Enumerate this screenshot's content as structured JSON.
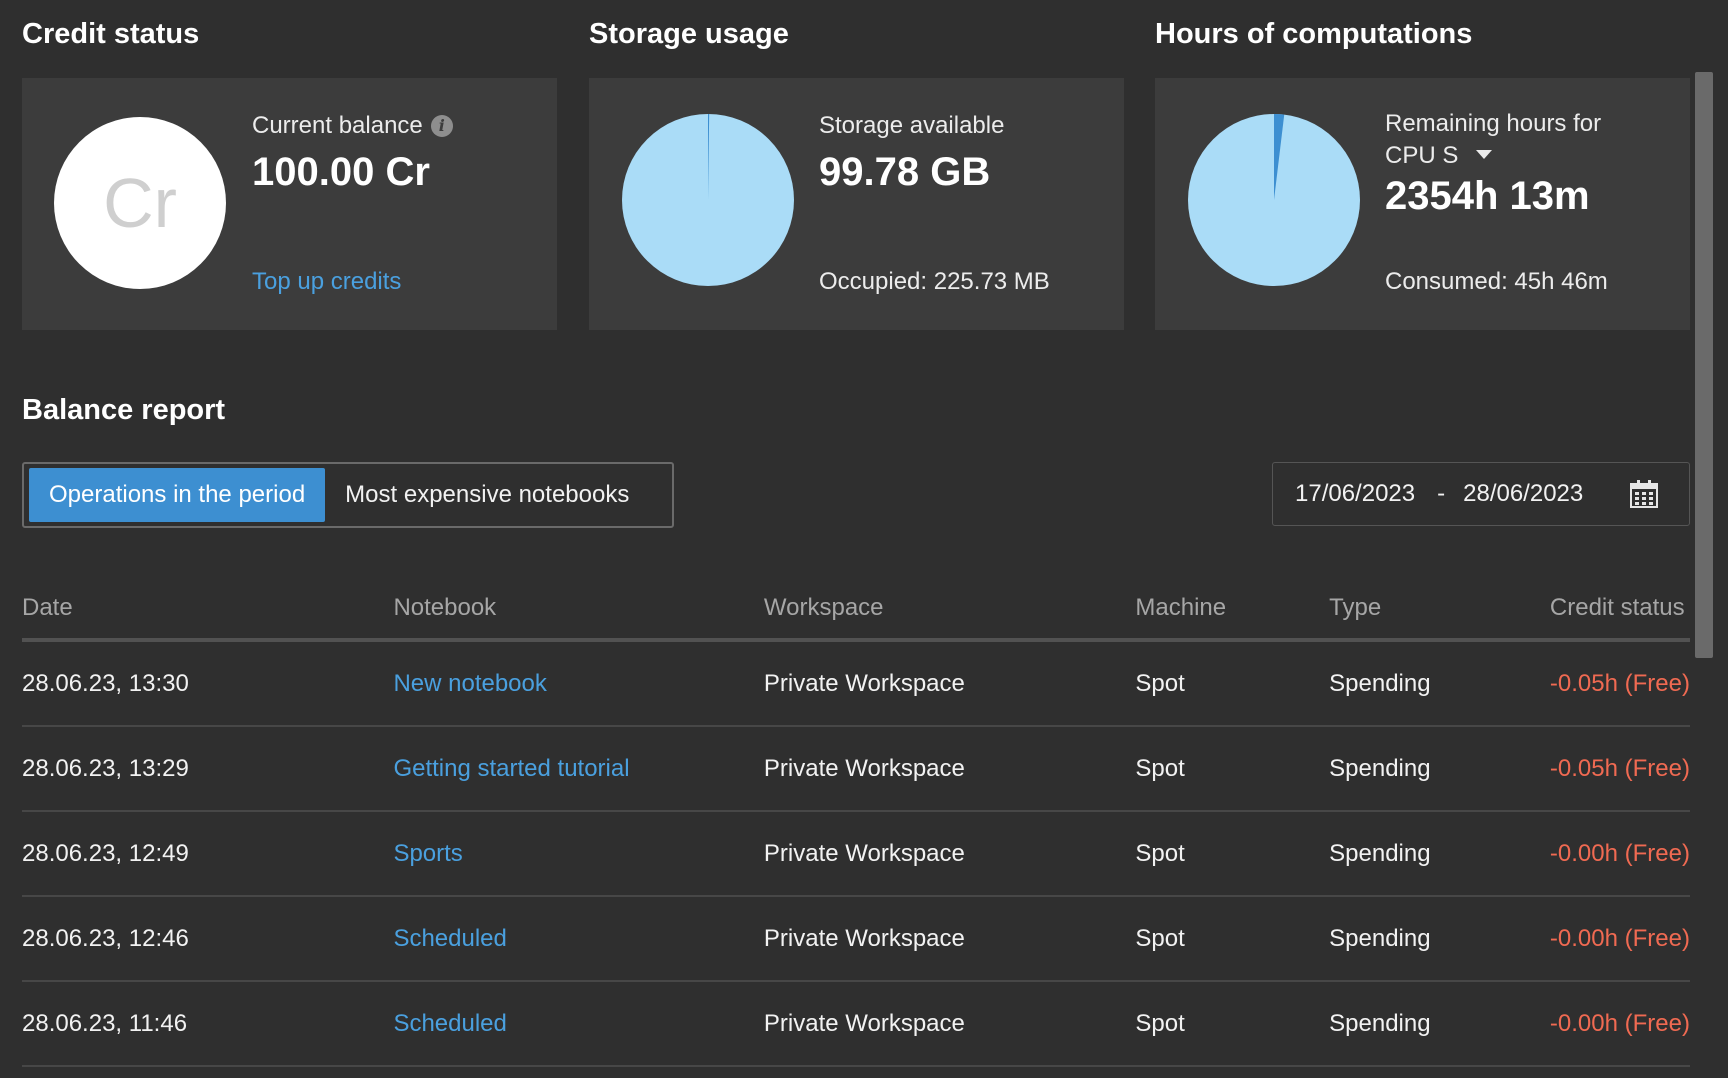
{
  "credit": {
    "title": "Credit status",
    "avatar_text": "Cr",
    "label": "Current balance",
    "info_icon": "i",
    "value": "100.00 Cr",
    "link": "Top up credits"
  },
  "storage": {
    "title": "Storage usage",
    "label": "Storage available",
    "value": "99.78 GB",
    "sub": "Occupied: 225.73 MB",
    "used_fraction": 0.0022
  },
  "hours": {
    "title": "Hours of computations",
    "label_line1": "Remaining hours for",
    "machine": "CPU S",
    "value": "2354h 13m",
    "sub": "Consumed: 45h 46m",
    "used_fraction": 0.019
  },
  "report": {
    "title": "Balance report",
    "tabs": [
      "Operations in the period",
      "Most expensive notebooks"
    ],
    "active_tab": 0,
    "date_from": "17/06/2023",
    "date_sep": "-",
    "date_to": "28/06/2023",
    "columns": [
      "Date",
      "Notebook",
      "Workspace",
      "Machine",
      "Type",
      "Credit status"
    ],
    "rows": [
      {
        "date": "28.06.23, 13:30",
        "notebook": "New notebook",
        "workspace": "Private Workspace",
        "machine": "Spot",
        "type": "Spending",
        "credit": "-0.05h (Free)"
      },
      {
        "date": "28.06.23, 13:29",
        "notebook": "Getting started tutorial",
        "workspace": "Private Workspace",
        "machine": "Spot",
        "type": "Spending",
        "credit": "-0.05h (Free)"
      },
      {
        "date": "28.06.23, 12:49",
        "notebook": "Sports",
        "workspace": "Private Workspace",
        "machine": "Spot",
        "type": "Spending",
        "credit": "-0.00h (Free)"
      },
      {
        "date": "28.06.23, 12:46",
        "notebook": "Scheduled",
        "workspace": "Private Workspace",
        "machine": "Spot",
        "type": "Spending",
        "credit": "-0.00h (Free)"
      },
      {
        "date": "28.06.23, 11:46",
        "notebook": "Scheduled",
        "workspace": "Private Workspace",
        "machine": "Spot",
        "type": "Spending",
        "credit": "-0.00h (Free)"
      }
    ]
  },
  "colors": {
    "background": "#2f2f2f",
    "card": "#3c3c3c",
    "accent": "#3d8fd1",
    "link": "#4aa0df",
    "pie_available": "#aadcf7",
    "pie_used": "#3d8fd1",
    "negative": "#f06a52"
  }
}
